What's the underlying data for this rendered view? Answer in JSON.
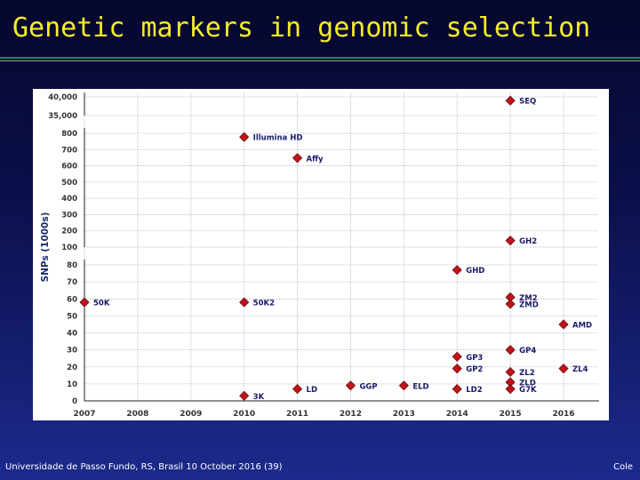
{
  "slide": {
    "title": "Genetic markers in genomic selection",
    "footer_left": "Universidade de Passo Fundo, RS, Brasil 10 October 2016 (39)",
    "footer_right": "Cole"
  },
  "colors": {
    "title": "#f5ec2a",
    "marker": "#c0141a",
    "marker_stroke": "#6a0a0d",
    "grid": "#a9b6cc",
    "label": "#1a1a6a"
  },
  "chart_data": {
    "type": "scatter",
    "title": "",
    "xlabel": "",
    "ylabel": "SNPs (1000s)",
    "x_ticks": [
      "2007",
      "2008",
      "2009",
      "2010",
      "2011",
      "2012",
      "2013",
      "2014",
      "2015",
      "2016"
    ],
    "xlim": [
      2007,
      2016
    ],
    "y_scale": "broken (three linear segments)",
    "y_ticks": [
      "0",
      "10",
      "20",
      "30",
      "40",
      "50",
      "60",
      "70",
      "80",
      "100",
      "200",
      "300",
      "400",
      "500",
      "600",
      "700",
      "800",
      "35,000",
      "40,000"
    ],
    "grid": true,
    "points": [
      {
        "label": "50K",
        "x": 2007,
        "y": 58
      },
      {
        "label": "Illumina HD",
        "x": 2010,
        "y": 777
      },
      {
        "label": "50K2",
        "x": 2010,
        "y": 58
      },
      {
        "label": "3K",
        "x": 2010,
        "y": 3
      },
      {
        "label": "Affy",
        "x": 2011,
        "y": 648
      },
      {
        "label": "LD",
        "x": 2011,
        "y": 7
      },
      {
        "label": "GGP",
        "x": 2012,
        "y": 9
      },
      {
        "label": "ELD",
        "x": 2013,
        "y": 9
      },
      {
        "label": "GHD",
        "x": 2014,
        "y": 77
      },
      {
        "label": "GP3",
        "x": 2014,
        "y": 26
      },
      {
        "label": "GP2",
        "x": 2014,
        "y": 19
      },
      {
        "label": "LD2",
        "x": 2014,
        "y": 7
      },
      {
        "label": "SEQ",
        "x": 2015,
        "y": 39000
      },
      {
        "label": "GH2",
        "x": 2015,
        "y": 140
      },
      {
        "label": "ZM2",
        "x": 2015,
        "y": 61
      },
      {
        "label": "ZMD",
        "x": 2015,
        "y": 57
      },
      {
        "label": "GP4",
        "x": 2015,
        "y": 30
      },
      {
        "label": "ZL2",
        "x": 2015,
        "y": 17
      },
      {
        "label": "ZLD",
        "x": 2015,
        "y": 11
      },
      {
        "label": "G7K",
        "x": 2015,
        "y": 7
      },
      {
        "label": "AMD",
        "x": 2016,
        "y": 45
      },
      {
        "label": "ZL4",
        "x": 2016,
        "y": 19
      }
    ]
  }
}
